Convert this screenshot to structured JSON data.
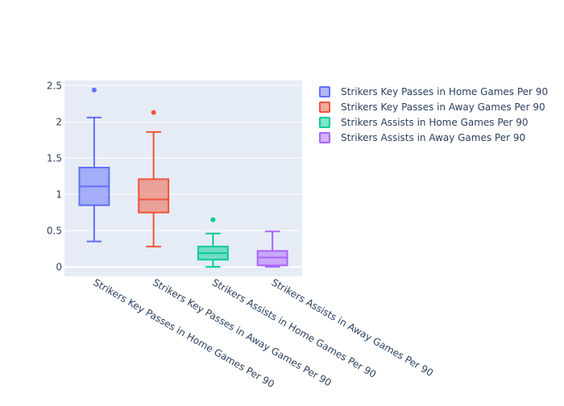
{
  "chart_data": {
    "type": "box",
    "title": "",
    "xlabel": "",
    "ylabel": "",
    "ylim": [
      -0.13,
      2.57
    ],
    "yticks": [
      0,
      0.5,
      1,
      1.5,
      2,
      2.5
    ],
    "ytick_labels": [
      "0",
      "0.5",
      "1",
      "1.5",
      "2",
      "2.5"
    ],
    "grid": true,
    "legend_position": "top-right",
    "categories": [
      "Strikers Key Passes in Home Games Per 90",
      "Strikers Key Passes in Away Games Per 90",
      "Strikers Assists in Home Games Per 90",
      "Strikers Assists in Away Games Per 90"
    ],
    "series": [
      {
        "name": "Strikers Key Passes in Home Games Per 90",
        "color": "#636efa",
        "min": 0.35,
        "q1": 0.85,
        "median": 1.11,
        "q3": 1.37,
        "max": 2.06,
        "outliers": [
          2.44
        ]
      },
      {
        "name": "Strikers Key Passes in Away Games Per 90",
        "color": "#ef553b",
        "min": 0.28,
        "q1": 0.75,
        "median": 0.93,
        "q3": 1.21,
        "max": 1.86,
        "outliers": [
          2.13
        ]
      },
      {
        "name": "Strikers Assists in Home Games Per 90",
        "color": "#00cc96",
        "min": 0.0,
        "q1": 0.1,
        "median": 0.19,
        "q3": 0.28,
        "max": 0.46,
        "outliers": [
          0.65
        ]
      },
      {
        "name": "Strikers Assists in Away Games Per 90",
        "color": "#ab63fa",
        "min": 0.0,
        "q1": 0.02,
        "median": 0.13,
        "q3": 0.22,
        "max": 0.49,
        "outliers": []
      }
    ]
  }
}
